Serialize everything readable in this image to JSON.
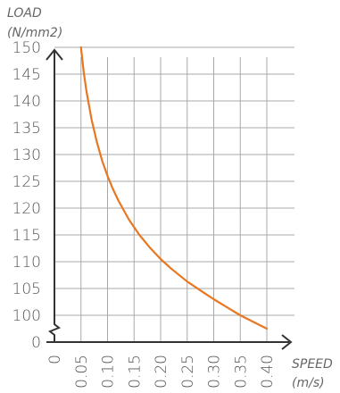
{
  "chart_data": {
    "type": "line",
    "title": "",
    "ylabel_line1": "LOAD",
    "ylabel_line2": "(N/mm2)",
    "xlabel_line1": "SPEED",
    "xlabel_line2": "(m/s)",
    "x_ticks": [
      "0",
      "0.05",
      "0.10",
      "0.15",
      "0.20",
      "0.25",
      "0.30",
      "0.35",
      "0.40"
    ],
    "x_tick_values": [
      0,
      0.05,
      0.1,
      0.15,
      0.2,
      0.25,
      0.3,
      0.35,
      0.4
    ],
    "y_ticks": [
      "0",
      "100",
      "105",
      "110",
      "115",
      "120",
      "125",
      "130",
      "135",
      "140",
      "145",
      "150"
    ],
    "y_tick_values": [
      0,
      100,
      105,
      110,
      115,
      120,
      125,
      130,
      135,
      140,
      145,
      150
    ],
    "axis_break": true,
    "grid": true,
    "series": [
      {
        "color": "#e87722",
        "x": [
          0.05,
          0.055,
          0.06,
          0.07,
          0.08,
          0.09,
          0.1,
          0.11,
          0.12,
          0.14,
          0.16,
          0.18,
          0.2,
          0.22,
          0.25,
          0.28,
          0.3,
          0.33,
          0.35,
          0.38,
          0.4
        ],
        "y": [
          150,
          145.5,
          142,
          136.5,
          132.3,
          128.8,
          126,
          123.6,
          121.5,
          117.9,
          115,
          112.6,
          110.5,
          108.7,
          106.3,
          104.3,
          103,
          101.2,
          100,
          98.5,
          97.5
        ]
      }
    ]
  }
}
